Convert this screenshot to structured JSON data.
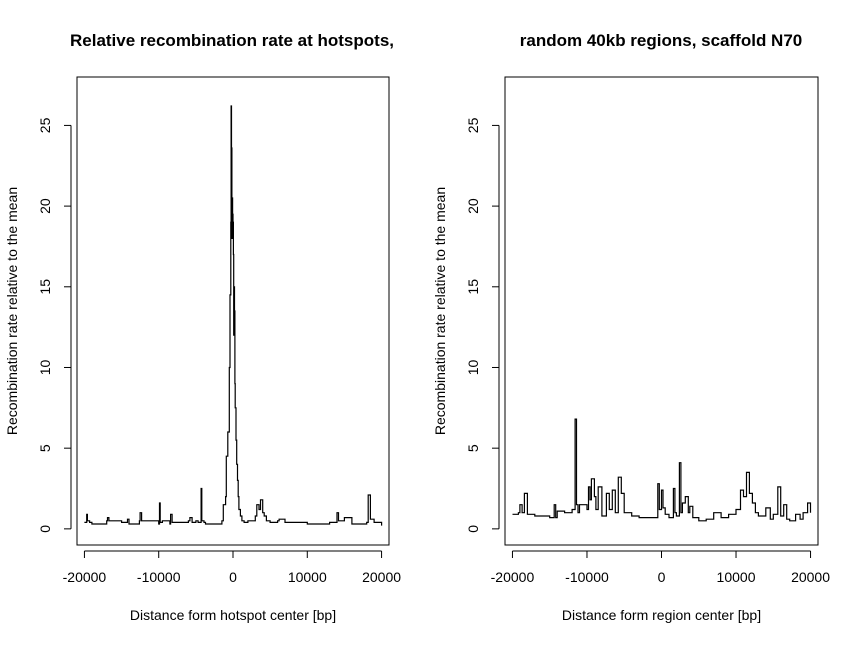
{
  "chart_data": [
    {
      "type": "line",
      "title": "Relative recombination rate at hotspots,",
      "xlabel": "Distance form hotspot center [bp]",
      "ylabel": "Recombination rate relative to the mean",
      "xlim": [
        -21000,
        21000
      ],
      "ylim": [
        -1,
        28
      ],
      "xticks": [
        -20000,
        -10000,
        0,
        10000,
        20000
      ],
      "xtick_labels": [
        "-20000",
        "-10000",
        "0",
        "10000",
        "20000"
      ],
      "yticks": [
        0,
        5,
        10,
        15,
        20,
        25
      ],
      "ytick_labels": [
        "0",
        "5",
        "10",
        "15",
        "20",
        "25"
      ],
      "grid": false,
      "series": [
        {
          "x": [
            -20000,
            -19700,
            -19600,
            -19300,
            -19000,
            -17000,
            -16900,
            -16700,
            -15000,
            -14200,
            -14000,
            -12600,
            -12500,
            -12300,
            -10000,
            -9900,
            -9800,
            -9500,
            -8500,
            -8400,
            -8200,
            -6000,
            -5800,
            -5500,
            -5000,
            -4700,
            -4300,
            -4200,
            -3900,
            -3700,
            -3500,
            -1500,
            -1300,
            -1000,
            -900,
            -700,
            -500,
            -400,
            -300,
            -250,
            -200,
            -150,
            -100,
            -50,
            0,
            50,
            100,
            150,
            200,
            250,
            300,
            400,
            500,
            600,
            700,
            800,
            1000,
            1200,
            1500,
            2000,
            2500,
            3000,
            3200,
            3500,
            3700,
            4000,
            4200,
            4500,
            5000,
            6000,
            6200,
            7000,
            10000,
            13000,
            14000,
            14200,
            15000,
            16000,
            18000,
            18200,
            18500,
            19000,
            20000
          ],
          "y": [
            0.4,
            0.9,
            0.5,
            0.4,
            0.3,
            0.5,
            0.7,
            0.5,
            0.4,
            0.6,
            0.3,
            0.5,
            1.0,
            0.5,
            0.3,
            1.6,
            0.4,
            0.5,
            0.3,
            0.9,
            0.4,
            0.5,
            0.7,
            0.4,
            0.5,
            0.4,
            2.5,
            0.5,
            0.4,
            0.3,
            0.3,
            0.5,
            1.5,
            2.0,
            4.5,
            6.0,
            10.0,
            14.5,
            19.0,
            26.2,
            23.6,
            18.0,
            20.5,
            19.5,
            19.0,
            17.0,
            12.0,
            15.0,
            13.5,
            9.0,
            7.5,
            5.5,
            4.0,
            3.0,
            2.0,
            1.2,
            0.8,
            0.5,
            0.4,
            0.5,
            0.5,
            0.8,
            1.5,
            1.2,
            1.8,
            1.0,
            0.8,
            0.5,
            0.4,
            0.5,
            0.6,
            0.4,
            0.3,
            0.4,
            1.0,
            0.5,
            0.7,
            0.3,
            0.4,
            2.1,
            0.6,
            0.4,
            0.2
          ]
        }
      ]
    },
    {
      "type": "line",
      "title": "random 40kb regions, scaffold N70",
      "xlabel": "Distance form region center [bp]",
      "ylabel": "Recombination rate relative to the mean",
      "xlim": [
        -21000,
        21000
      ],
      "ylim": [
        -1,
        28
      ],
      "xticks": [
        -20000,
        -10000,
        0,
        10000,
        20000
      ],
      "xtick_labels": [
        "-20000",
        "-10000",
        "0",
        "10000",
        "20000"
      ],
      "yticks": [
        0,
        5,
        10,
        15,
        20,
        25
      ],
      "ytick_labels": [
        "0",
        "5",
        "10",
        "15",
        "20",
        "25"
      ],
      "grid": false,
      "series": [
        {
          "x": [
            -20000,
            -19200,
            -19000,
            -18700,
            -18400,
            -18000,
            -17000,
            -15000,
            -14400,
            -14200,
            -14000,
            -13000,
            -12000,
            -11600,
            -11400,
            -11200,
            -11000,
            -10000,
            -9800,
            -9600,
            -9400,
            -9000,
            -8800,
            -8500,
            -8000,
            -7400,
            -7000,
            -6600,
            -6200,
            -5800,
            -5400,
            -5000,
            -4000,
            -3000,
            -2000,
            -500,
            -300,
            0,
            200,
            500,
            1000,
            1600,
            1800,
            2000,
            2400,
            2600,
            2800,
            3200,
            3600,
            3800,
            4200,
            5000,
            6000,
            7000,
            8000,
            9000,
            10000,
            10600,
            11000,
            11400,
            11800,
            12200,
            12600,
            13000,
            14000,
            14600,
            15000,
            15600,
            16000,
            16400,
            16800,
            17200,
            18000,
            18600,
            19000,
            19600,
            20000
          ],
          "y": [
            0.9,
            1.0,
            1.5,
            1.0,
            2.2,
            0.9,
            0.8,
            0.7,
            1.5,
            0.7,
            1.1,
            1.0,
            1.2,
            6.8,
            1.5,
            1.0,
            1.5,
            1.2,
            2.6,
            1.8,
            3.1,
            2.0,
            1.2,
            2.6,
            0.8,
            2.2,
            1.2,
            2.4,
            1.0,
            3.2,
            2.2,
            1.0,
            0.8,
            0.7,
            0.7,
            2.8,
            1.2,
            2.4,
            1.3,
            0.9,
            0.7,
            2.5,
            1.0,
            0.8,
            4.1,
            1.0,
            1.6,
            2.0,
            1.0,
            1.4,
            0.7,
            0.5,
            0.6,
            1.0,
            0.7,
            0.9,
            1.2,
            2.4,
            2.0,
            3.5,
            2.2,
            1.6,
            1.0,
            0.8,
            1.3,
            0.6,
            0.9,
            2.6,
            0.8,
            1.5,
            0.6,
            0.5,
            0.9,
            0.6,
            1.0,
            1.6,
            1.0
          ]
        }
      ]
    }
  ]
}
